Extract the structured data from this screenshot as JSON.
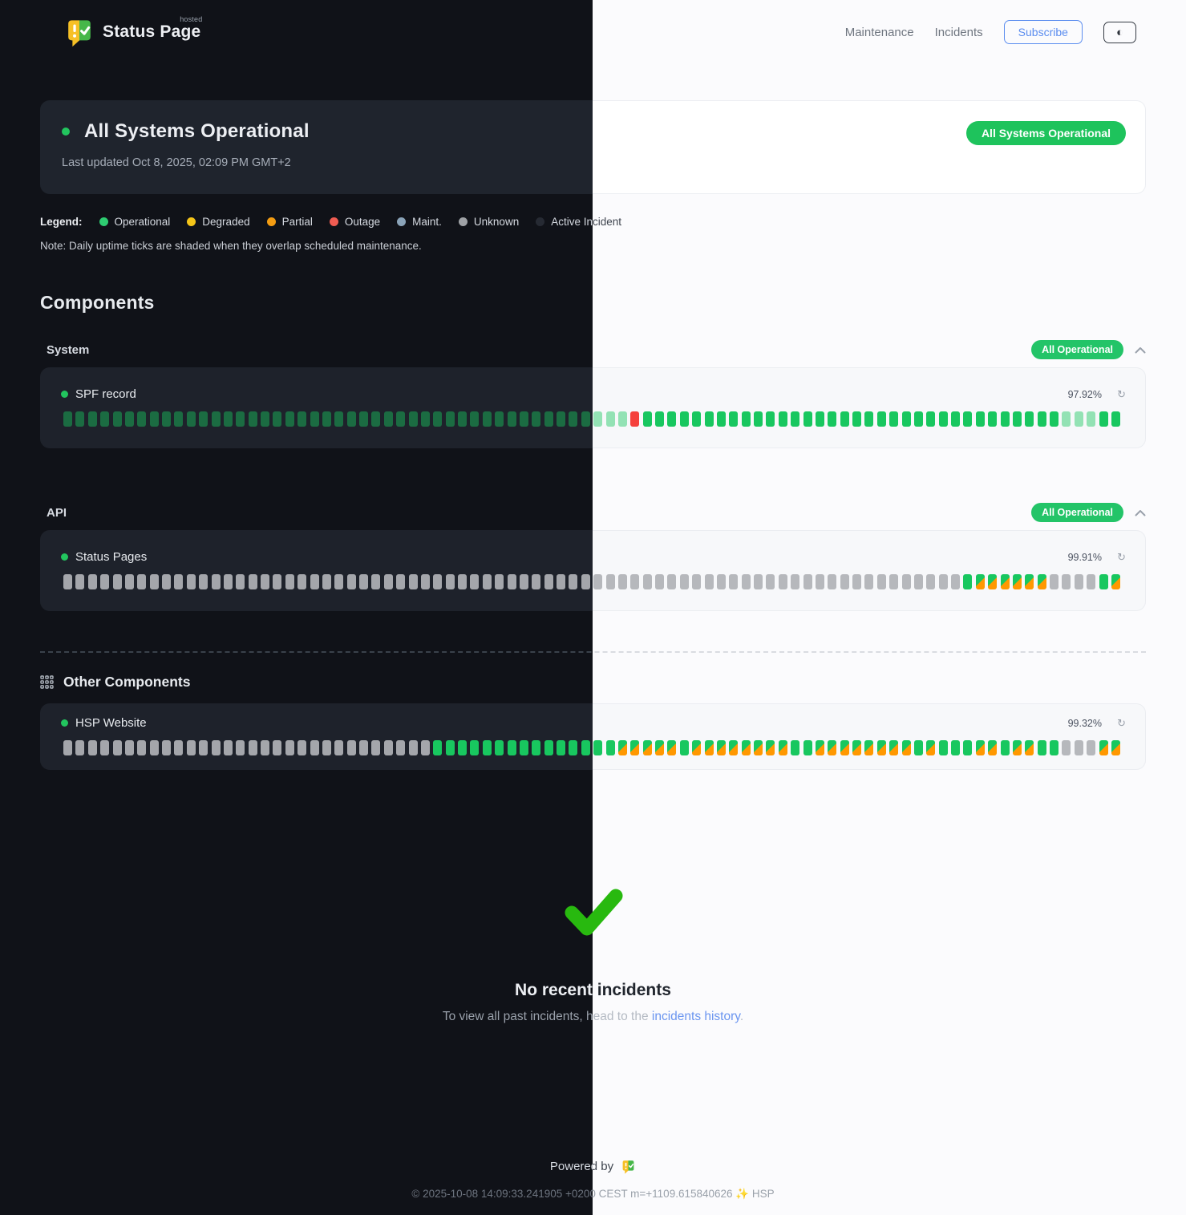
{
  "header": {
    "brand": "Status Page",
    "brand_hosted": "hosted",
    "nav": {
      "maintenance": "Maintenance",
      "incidents": "Incidents"
    },
    "subscribe_label": "Subscribe",
    "theme_toggle_glyph": "◐"
  },
  "banner": {
    "title": "All Systems Operational",
    "updated": "Last updated Oct 8, 2025, 02:09 PM GMT+2",
    "badge": "All Systems Operational"
  },
  "legend": {
    "label": "Legend:",
    "items": [
      {
        "label": "Operational",
        "color": "#2ecc71"
      },
      {
        "label": "Degraded",
        "color": "#f5c518"
      },
      {
        "label": "Partial",
        "color": "#f39c12"
      },
      {
        "label": "Outage",
        "color": "#f05c52"
      },
      {
        "label": "Maint.",
        "color": "#8aa3b8"
      },
      {
        "label": "Unknown",
        "color": "#b8bcc0"
      },
      {
        "label": "Active Incident",
        "color": "#262a33"
      }
    ],
    "note": "Note: Daily uptime ticks are shaded when they overlap scheduled maintenance."
  },
  "components": {
    "title": "Components",
    "tick_colors": {
      "operational": "#18c75f",
      "outage": "#f5413c",
      "unknown": "#b0b2b6",
      "maintenance_overlap": "#ff9800"
    },
    "groups": [
      {
        "name": "System",
        "badge": "All Operational",
        "items": [
          {
            "name": "SPF record",
            "uptime": "97.92%",
            "ticks": "ssssssssssssssssssssssssssssssssssssssssssssssroooooooooooooooooooooooooooooooooosssoo"
          }
        ]
      },
      {
        "name": "API",
        "badge": "All Operational",
        "items": [
          {
            "name": "Status Pages",
            "uptime": "99.91%",
            "ticks": "uuuuuuuuuuuuuuuuuuuuuuuuuuuuuuuuuuuuuuuuuuuuuuuuuuuuuuuuuuuuuuuuuuuuuuuuuommmmmmuuuuom"
          }
        ]
      }
    ],
    "other": {
      "name": "Other Components",
      "items": [
        {
          "name": "HSP Website",
          "uptime": "99.32%",
          "ticks": "uuuuuuuuuuuuuuuuuuuuuuuuuuuuuuooooooooooooooommmmmommmmmmmmoommmmmmmmomooommommoouuumm"
        }
      ]
    }
  },
  "incidents_section": {
    "title": "No recent incidents",
    "subtitle_prefix": "To view all past incidents, head to the ",
    "link_label": "incidents history",
    "subtitle_suffix": "."
  },
  "footer": {
    "powered_by": "Powered by",
    "copyright_left": "© 2025-10-08 14:09:33.241905 +0200 CEST m=+1109.615840626 ",
    "sparkle": "✨",
    "copyright_right": " HSP"
  },
  "icons": {
    "refresh": "↻"
  }
}
